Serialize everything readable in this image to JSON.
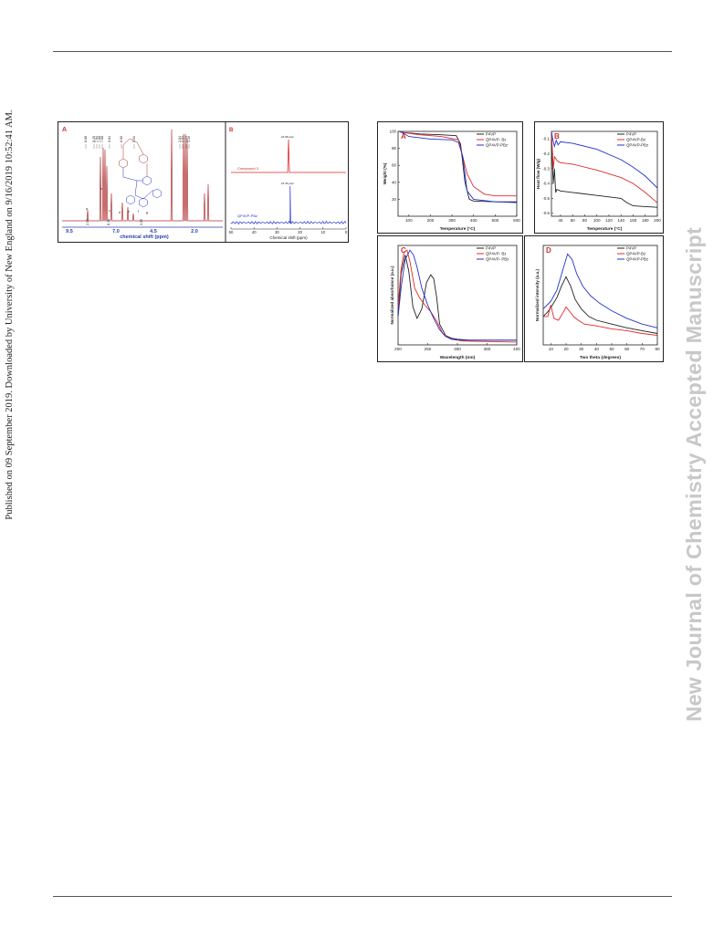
{
  "side_note": "Published on 09 September 2019. Downloaded by University of New England on 9/16/2019 10:52:41 AM.",
  "watermark": "New Journal of Chemistry Accepted Manuscript",
  "colors": {
    "red": "#e02a2a",
    "blue": "#2233cc",
    "black": "#222222",
    "nmr_red": "#b03030",
    "axis_blue": "#2a3fa8"
  },
  "figure1": {
    "panel_a": {
      "label": "A",
      "xlabel": "chemical shift (ppm)",
      "xticks": [
        "9.5",
        "7.0",
        "4.5",
        "2.0"
      ],
      "peak_labels": [
        "8.88",
        "8.25",
        "7.94",
        "7.89",
        "7.68",
        "6.84",
        "6.60",
        "5.54",
        "2.84",
        "2.61",
        "1.24",
        "1.10"
      ],
      "integrals": [
        "2.00",
        "8.76",
        "3.00"
      ],
      "letters": [
        "a",
        "b",
        "c",
        "d",
        "e",
        "f",
        "g"
      ]
    },
    "panel_b": {
      "label": "B",
      "xlabel": "Chemical shift (ppm)",
      "xticks": [
        "50",
        "40",
        "30",
        "20",
        "10",
        "0"
      ],
      "top_peak": "24.98 ppm",
      "bottom_peak": "24.46 ppm",
      "top_trace": "Compound 3",
      "bottom_trace": "QP4VP-PBz"
    }
  },
  "figure2": {
    "chart_data": [
      {
        "type": "line",
        "label": "A",
        "xlabel": "Temperature (°C)",
        "ylabel": "Weight (%)",
        "xlim": [
          50,
          600
        ],
        "ylim": [
          0,
          100
        ],
        "xticks": [
          "100",
          "200",
          "300",
          "400",
          "500",
          "600"
        ],
        "yticks": [
          "20",
          "40",
          "60",
          "80",
          "100"
        ],
        "series": [
          {
            "name": "P4VP",
            "color": "#222222",
            "x": [
              60,
              150,
              250,
              320,
              340,
              360,
              380,
              400,
              500,
              600
            ],
            "y": [
              99,
              97,
              96,
              95,
              85,
              40,
              20,
              18,
              17,
              17
            ]
          },
          {
            "name": "QP4VP- Bz",
            "color": "#e02a2a",
            "x": [
              60,
              150,
              250,
              330,
              350,
              370,
              400,
              450,
              500,
              600
            ],
            "y": [
              99,
              96,
              94,
              90,
              70,
              50,
              35,
              26,
              24,
              24
            ]
          },
          {
            "name": "QP4VP-PBz",
            "color": "#2233cc",
            "x": [
              60,
              100,
              200,
              300,
              330,
              350,
              370,
              400,
              500,
              600
            ],
            "y": [
              100,
              94,
              91,
              90,
              87,
              70,
              30,
              20,
              17,
              16
            ]
          }
        ]
      },
      {
        "type": "line",
        "label": "B",
        "xlabel": "Temperature (°C)",
        "ylabel": "Heat flow (W/g)",
        "xlim": [
          25,
          200
        ],
        "ylim": [
          -0.62,
          -0.05
        ],
        "xticks": [
          "40",
          "60",
          "80",
          "100",
          "120",
          "140",
          "160",
          "180",
          "200"
        ],
        "yticks": [
          "-0.6",
          "-0.5",
          "-0.4",
          "-0.3",
          "-0.2",
          "-0.1"
        ],
        "series": [
          {
            "name": "P4VP",
            "color": "#222222",
            "x": [
              25,
              28,
              30,
              32,
              34,
              40,
              60,
              100,
              140,
              150,
              160,
              180,
              200
            ],
            "y": [
              -0.1,
              -0.4,
              -0.3,
              -0.46,
              -0.44,
              -0.45,
              -0.46,
              -0.48,
              -0.5,
              -0.53,
              -0.55,
              -0.555,
              -0.56
            ]
          },
          {
            "name": "QP4VP-Bz",
            "color": "#e02a2a",
            "x": [
              25,
              28,
              30,
              35,
              40,
              60,
              100,
              140,
              160,
              180,
              200
            ],
            "y": [
              -0.05,
              -0.3,
              -0.22,
              -0.25,
              -0.26,
              -0.27,
              -0.31,
              -0.36,
              -0.4,
              -0.46,
              -0.53
            ]
          },
          {
            "name": "QP4VP-PBz",
            "color": "#2233cc",
            "x": [
              25,
              27,
              30,
              33,
              36,
              40,
              60,
              100,
              140,
              160,
              180,
              200
            ],
            "y": [
              -0.05,
              -0.1,
              -0.15,
              -0.11,
              -0.14,
              -0.12,
              -0.13,
              -0.17,
              -0.24,
              -0.29,
              -0.35,
              -0.43
            ]
          }
        ]
      },
      {
        "type": "line",
        "label": "C",
        "xlabel": "Wavelength (nm)",
        "ylabel": "Normalized absorbance (a.u.)",
        "xlim": [
          200,
          400
        ],
        "ylim": [
          0,
          1.05
        ],
        "xticks": [
          "200",
          "250",
          "300",
          "350",
          "400"
        ],
        "series": [
          {
            "name": "P4VP",
            "color": "#222222",
            "x": [
              200,
              205,
              212,
              218,
              225,
              232,
              240,
              248,
              255,
              260,
              265,
              270,
              280,
              290,
              300,
              320,
              400
            ],
            "y": [
              0.3,
              0.75,
              0.95,
              0.78,
              0.4,
              0.28,
              0.38,
              0.66,
              0.74,
              0.7,
              0.5,
              0.22,
              0.1,
              0.07,
              0.06,
              0.05,
              0.05
            ]
          },
          {
            "name": "QP4VP- Bz",
            "color": "#e02a2a",
            "x": [
              200,
              205,
              210,
              215,
              220,
              228,
              236,
              245,
              255,
              265,
              275,
              290,
              310,
              400
            ],
            "y": [
              0.4,
              0.8,
              0.98,
              1.0,
              0.88,
              0.6,
              0.5,
              0.42,
              0.35,
              0.25,
              0.12,
              0.06,
              0.04,
              0.03
            ]
          },
          {
            "name": "QP4VP- PBz",
            "color": "#2233cc",
            "x": [
              200,
              205,
              212,
              220,
              226,
              232,
              240,
              250,
              260,
              270,
              280,
              290,
              310,
              400
            ],
            "y": [
              0.3,
              0.6,
              0.9,
              1.0,
              0.95,
              0.82,
              0.6,
              0.42,
              0.28,
              0.16,
              0.09,
              0.06,
              0.05,
              0.05
            ]
          }
        ]
      },
      {
        "type": "line",
        "label": "D",
        "xlabel": "Two theta (degrees)",
        "ylabel": "Normalized intensity (a.u.)",
        "xlim": [
          5,
          80
        ],
        "ylim": [
          0,
          1.05
        ],
        "xticks": [
          "10",
          "20",
          "30",
          "40",
          "50",
          "60",
          "70",
          "80"
        ],
        "series": [
          {
            "name": "P4VP",
            "color": "#222222",
            "x": [
              5,
              8,
              11,
              14,
              17,
              20,
              23,
              26,
              30,
              35,
              40,
              50,
              60,
              70,
              80
            ],
            "y": [
              0.3,
              0.35,
              0.42,
              0.5,
              0.62,
              0.72,
              0.62,
              0.48,
              0.38,
              0.3,
              0.26,
              0.22,
              0.18,
              0.15,
              0.12
            ]
          },
          {
            "name": "QP4VP-Bz",
            "color": "#e02a2a",
            "x": [
              5,
              8,
              10,
              12,
              15,
              18,
              20,
              22,
              25,
              28,
              32,
              40,
              50,
              60,
              70,
              80
            ],
            "y": [
              0.3,
              0.3,
              0.42,
              0.28,
              0.26,
              0.34,
              0.4,
              0.36,
              0.3,
              0.26,
              0.22,
              0.2,
              0.17,
              0.15,
              0.12,
              0.1
            ]
          },
          {
            "name": "QP4VP-PBz",
            "color": "#2233cc",
            "x": [
              5,
              10,
              14,
              18,
              21,
              24,
              27,
              31,
              36,
              42,
              50,
              60,
              70,
              80
            ],
            "y": [
              0.38,
              0.46,
              0.58,
              0.8,
              0.96,
              0.9,
              0.75,
              0.62,
              0.52,
              0.44,
              0.36,
              0.28,
              0.22,
              0.18
            ]
          }
        ]
      }
    ]
  }
}
